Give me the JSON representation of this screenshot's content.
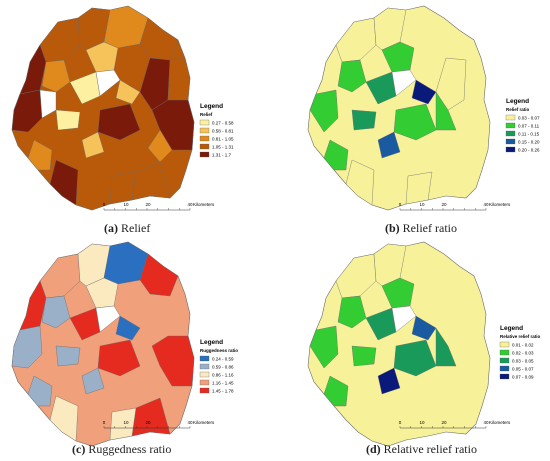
{
  "panels": [
    {
      "caption_letter": "(a)",
      "caption_text": "Relief",
      "legend_title": "Legend",
      "legend_subtitle": "Relief",
      "classes": [
        {
          "label": "0.27 - 0.58",
          "color": "#fdf0a0"
        },
        {
          "label": "0.58 - 0.81",
          "color": "#f6c25a"
        },
        {
          "label": "0.81 - 1.05",
          "color": "#e08a1e"
        },
        {
          "label": "1.05 - 1.31",
          "color": "#b85a0a"
        },
        {
          "label": "1.31 - 1.7",
          "color": "#7a1a0a"
        }
      ]
    },
    {
      "caption_letter": "(b)",
      "caption_text": "Relief ratio",
      "legend_title": "Legend",
      "legend_subtitle": "Relief ratio",
      "classes": [
        {
          "label": "0.03 - 0.07",
          "color": "#f7f29a"
        },
        {
          "label": "0.07 - 0.11",
          "color": "#33cc33"
        },
        {
          "label": "0.11 - 0.15",
          "color": "#1a9a5a"
        },
        {
          "label": "0.15 - 0.20",
          "color": "#1a5aa0"
        },
        {
          "label": "0.20 - 0.26",
          "color": "#0a1a7a"
        }
      ]
    },
    {
      "caption_letter": "(c)",
      "caption_text": "Ruggedness ratio",
      "legend_title": "Legend",
      "legend_subtitle": "Ruggedness ratio",
      "classes": [
        {
          "label": "0.24 - 0.59",
          "color": "#2a6fc0"
        },
        {
          "label": "0.59 - 0.86",
          "color": "#9ab0c8"
        },
        {
          "label": "0.86 - 1.16",
          "color": "#fbeac0"
        },
        {
          "label": "1.16 - 1.45",
          "color": "#f0a07a"
        },
        {
          "label": "1.45 - 1.78",
          "color": "#e52a20"
        }
      ]
    },
    {
      "caption_letter": "(d)",
      "caption_text": "Relative relief ratio",
      "legend_title": "Legend",
      "legend_subtitle": "Relative relief ratio",
      "classes": [
        {
          "label": "0.01 - 0.02",
          "color": "#f7f29a"
        },
        {
          "label": "0.02 - 0.03",
          "color": "#33cc33"
        },
        {
          "label": "0.03 - 0.05",
          "color": "#1a9a5a"
        },
        {
          "label": "0.05 - 0.07",
          "color": "#1a5aa0"
        },
        {
          "label": "0.07 - 0.09",
          "color": "#0a1a7a"
        }
      ]
    }
  ],
  "scale_bar": {
    "ticks": [
      "0",
      "10",
      "20",
      "40"
    ],
    "unit": "Kilometers"
  },
  "boundary_color": "#6b6b6b"
}
